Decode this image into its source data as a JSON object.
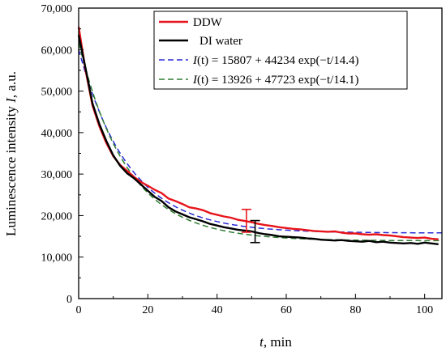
{
  "chart_data": {
    "type": "line",
    "xlabel_var": "t",
    "xlabel_unit": ", min",
    "ylabel_text": "Luminescence intensity ",
    "ylabel_var": "I",
    "ylabel_unit": ", a.u.",
    "xlim": [
      0,
      105
    ],
    "ylim": [
      0,
      70000
    ],
    "xticks": [
      0,
      20,
      40,
      60,
      80,
      100
    ],
    "xtick_labels": [
      "0",
      "20",
      "40",
      "60",
      "80",
      "100"
    ],
    "yticks": [
      0,
      10000,
      20000,
      30000,
      40000,
      50000,
      60000,
      70000
    ],
    "ytick_labels": [
      "0",
      "10,000",
      "20,000",
      "30,000",
      "40,000",
      "50,000",
      "60,000",
      "70,000"
    ],
    "grid": false,
    "legend_position": "top-right",
    "series": [
      {
        "name": "DDW",
        "color": "#e8141b",
        "style": "solid",
        "x": [
          0,
          2,
          4,
          6,
          8,
          10,
          12,
          14,
          16,
          18,
          20,
          22,
          24,
          26,
          28,
          30,
          32,
          34,
          36,
          38,
          40,
          42,
          44,
          46,
          48,
          50,
          52,
          54,
          56,
          58,
          60,
          62,
          64,
          66,
          68,
          70,
          72,
          74,
          76,
          78,
          80,
          82,
          84,
          86,
          88,
          90,
          92,
          94,
          96,
          98,
          100,
          102,
          104
        ],
        "y": [
          65500,
          55000,
          46500,
          41500,
          37500,
          34300,
          32200,
          30800,
          29300,
          28100,
          27200,
          26200,
          25400,
          24100,
          23500,
          22800,
          22000,
          21700,
          21300,
          20600,
          20200,
          19800,
          19500,
          19000,
          18700,
          18400,
          18000,
          17700,
          17500,
          17200,
          17000,
          16800,
          16700,
          16500,
          16300,
          16200,
          16100,
          16200,
          15900,
          15700,
          15700,
          15500,
          15400,
          15500,
          15300,
          15200,
          15000,
          14800,
          14700,
          14600,
          14700,
          14400,
          14300
        ]
      },
      {
        "name": "DI water",
        "color": "#000000",
        "style": "solid",
        "x": [
          0,
          2,
          4,
          6,
          8,
          10,
          12,
          14,
          16,
          18,
          20,
          22,
          24,
          26,
          28,
          30,
          32,
          34,
          36,
          38,
          40,
          42,
          44,
          46,
          48,
          50,
          52,
          54,
          56,
          58,
          60,
          62,
          64,
          66,
          68,
          70,
          72,
          74,
          76,
          78,
          80,
          82,
          84,
          86,
          88,
          90,
          92,
          94,
          96,
          98,
          100,
          102,
          104
        ],
        "y": [
          63500,
          55500,
          47000,
          42000,
          38000,
          34500,
          32000,
          30200,
          29000,
          27500,
          26000,
          24500,
          23500,
          22000,
          21000,
          20300,
          19600,
          19100,
          18600,
          18000,
          17600,
          17200,
          16900,
          16600,
          16400,
          16200,
          15800,
          15500,
          15300,
          15000,
          14900,
          14800,
          14700,
          14500,
          14400,
          14200,
          14100,
          14000,
          14100,
          13900,
          13800,
          13700,
          13900,
          13600,
          13700,
          13500,
          13400,
          13300,
          13400,
          13200,
          13500,
          13300,
          13100
        ]
      },
      {
        "name_var": "I",
        "name_arg": "(t)",
        "name_rest": " = 15807 + 44234 exp(−t/14.4)",
        "color": "#2b2bd6",
        "style": "dashed",
        "fit": {
          "A": 15807,
          "B": 44234,
          "tau": 14.4
        }
      },
      {
        "name_var": "I",
        "name_arg": "(t)",
        "name_rest": " = 13926 + 47723 exp(−t/14.1)",
        "color": "#2e7d32",
        "style": "dashed",
        "fit": {
          "A": 13926,
          "B": 47723,
          "tau": 14.1
        }
      }
    ],
    "error_bars": [
      {
        "series": "DDW",
        "x": 48.5,
        "y": 18700,
        "low": 16000,
        "high": 21500,
        "color": "#e8141b"
      },
      {
        "series": "DI water",
        "x": 51,
        "y": 16200,
        "low": 13500,
        "high": 18800,
        "color": "#000000"
      }
    ]
  }
}
